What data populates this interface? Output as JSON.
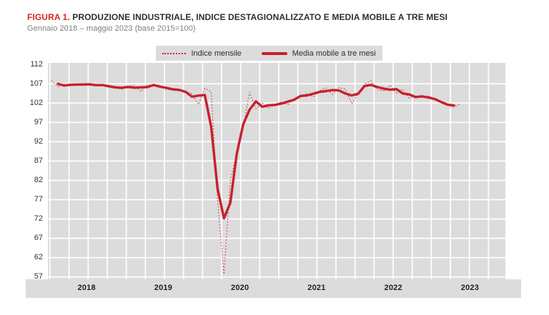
{
  "figure": {
    "label": "FIGURA 1.",
    "title": "PRODUZIONE INDUSTRIALE, INDICE DESTAGIONALIZZATO E MEDIA MOBILE A TRE MESI",
    "subtitle": "Gennaio 2018 – maggio 2023 (base 2015=100)"
  },
  "legend": {
    "items": [
      {
        "label": "Indice mensile",
        "style": "dotted"
      },
      {
        "label": "Media mobile a tre mesi",
        "style": "solid"
      }
    ]
  },
  "colors": {
    "series_red": "#c5212e",
    "title_red": "#d8261f",
    "plot_background": "#dcdcdc",
    "gridline": "#ffffff",
    "text_dark": "#2e2e2e",
    "text_gray": "#7d7d7d",
    "axis_text": "#333333"
  },
  "chart_data": {
    "type": "line",
    "title": "PRODUZIONE INDUSTRIALE, INDICE DESTAGIONALIZZATO E MEDIA MOBILE A TRE MESI",
    "subtitle": "Gennaio 2018 – maggio 2023 (base 2015=100)",
    "x_axis": {
      "start_month": "2018-01",
      "end_month": "2023-05",
      "tick_labels": [
        "2018",
        "2019",
        "2020",
        "2021",
        "2022",
        "2023"
      ]
    },
    "y_axis": {
      "ticks": [
        112,
        107,
        102,
        97,
        92,
        87,
        82,
        77,
        72,
        67,
        62,
        57
      ],
      "range_top": 112.4,
      "range_bottom": 56.4
    },
    "grid": {
      "horizontal_step": 5,
      "vertical_step_months": 3,
      "style": "white gridlines on gray panel"
    },
    "series": [
      {
        "name": "Indice mensile",
        "style": "dotted",
        "values": [
          107.8,
          106.2,
          106.9,
          106.5,
          106.8,
          107.0,
          106.6,
          106.9,
          106.4,
          106.7,
          105.9,
          105.6,
          106.3,
          106.6,
          105.0,
          106.6,
          106.8,
          106.6,
          105.3,
          105.9,
          105.4,
          104.9,
          104.4,
          101.6,
          105.8,
          104.9,
          76.8,
          57.7,
          82.0,
          89.0,
          95.5,
          104.8,
          100.5,
          102.0,
          100.6,
          101.7,
          102.3,
          101.6,
          103.2,
          103.8,
          104.5,
          103.6,
          105.2,
          105.9,
          104.2,
          106.0,
          105.6,
          101.8,
          104.5,
          106.9,
          107.8,
          105.4,
          105.2,
          106.6,
          104.6,
          105.6,
          103.2,
          103.9,
          103.5,
          103.8,
          103.0,
          102.3,
          101.5,
          100.9,
          101.8
        ]
      },
      {
        "name": "Media mobile a tre mesi",
        "style": "solid",
        "derived": "centered 3-month moving average of Indice mensile"
      }
    ]
  }
}
